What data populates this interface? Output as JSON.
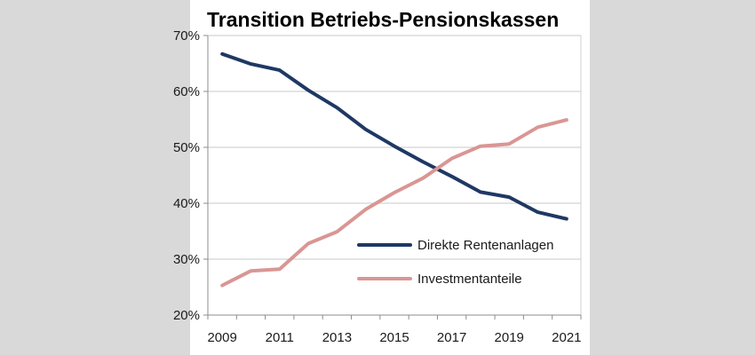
{
  "chart_data": {
    "type": "line",
    "title": "Transition Betriebs-Pensionskassen",
    "xlabel": "",
    "ylabel": "",
    "x": [
      2009,
      2010,
      2011,
      2012,
      2013,
      2014,
      2015,
      2016,
      2017,
      2018,
      2019,
      2020,
      2021
    ],
    "x_tick_labels": [
      "2009",
      "2011",
      "2013",
      "2015",
      "2017",
      "2019",
      "2021"
    ],
    "y_tick_labels": [
      "70%",
      "60%",
      "50%",
      "40%",
      "30%",
      "20%"
    ],
    "ylim": [
      20,
      70
    ],
    "y_unit": "%",
    "grid": true,
    "legend_position": "lower-right",
    "series": [
      {
        "name": "Direkte Rentenanlagen",
        "color": "#1f3864",
        "values": [
          66.7,
          64.9,
          63.8,
          60.2,
          57.1,
          53.2,
          50.2,
          47.4,
          44.8,
          42.0,
          41.1,
          38.4,
          37.2
        ]
      },
      {
        "name": "Investmentanteile",
        "color": "#d99694",
        "values": [
          25.3,
          27.9,
          28.2,
          32.8,
          34.9,
          38.9,
          41.9,
          44.5,
          48.0,
          50.2,
          50.6,
          53.6,
          54.9
        ]
      }
    ]
  }
}
